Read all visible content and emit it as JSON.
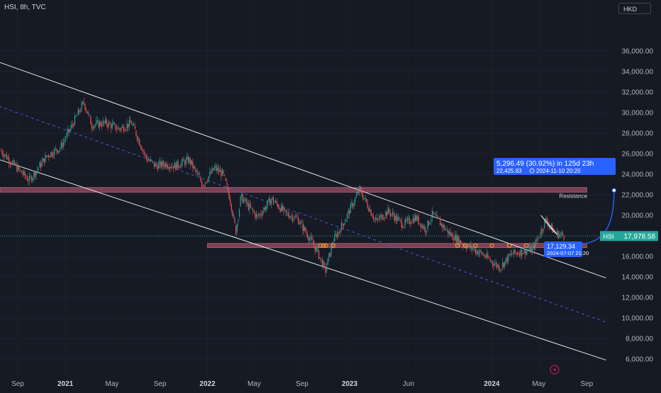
{
  "header": {
    "title": "HSI, 8h, TVC",
    "currency": "HKD"
  },
  "colors": {
    "background": "#161a25",
    "up": "#26a69a",
    "down": "#ef5350",
    "zone": "#9c4d63",
    "measure": "#2962ff",
    "marker": "#f59a23"
  },
  "chart_data": {
    "type": "candlestick",
    "title": "HSI, 8h, TVC",
    "ylim": [
      5000,
      37500
    ],
    "y_ticks": [
      6000,
      8000,
      10000,
      12000,
      14000,
      16000,
      18000,
      20000,
      22000,
      24000,
      26000,
      28000,
      30000,
      32000,
      34000,
      36000
    ],
    "y_tick_labels": [
      "6,000.00",
      "8,000.00",
      "10,000.00",
      "12,000.00",
      "14,000.00",
      "16,000.00",
      "18,000.00",
      "20,000.00",
      "22,000.00",
      "24,000.00",
      "26,000.00",
      "28,000.00",
      "30,000.00",
      "32,000.00",
      "34,000.00",
      "36,000.00"
    ],
    "x_ticks": [
      "2020-09-01",
      "2021-01-01",
      "2021-05-01",
      "2021-09-01",
      "2022-01-01",
      "2022-05-01",
      "2022-09-01",
      "2023-01-01",
      "2023-06-01",
      "2024-01-01",
      "2024-05-01",
      "2024-09-01"
    ],
    "x_tick_labels": [
      "Sep",
      "2021",
      "May",
      "Sep",
      "2022",
      "May",
      "Sep",
      "2023",
      "Jun",
      "2024",
      "May",
      "Sep"
    ],
    "x_tick_bold": [
      false,
      true,
      false,
      false,
      true,
      false,
      false,
      true,
      false,
      true,
      false,
      false
    ],
    "price_path": [
      [
        "2020-07-20",
        26300
      ],
      [
        "2020-08-20",
        25000
      ],
      [
        "2020-10-01",
        23400
      ],
      [
        "2020-11-15",
        25800
      ],
      [
        "2020-12-20",
        26600
      ],
      [
        "2021-01-15",
        28500
      ],
      [
        "2021-02-18",
        31000
      ],
      [
        "2021-03-10",
        28800
      ],
      [
        "2021-04-15",
        29000
      ],
      [
        "2021-05-20",
        28400
      ],
      [
        "2021-06-20",
        29000
      ],
      [
        "2021-07-28",
        25600
      ],
      [
        "2021-08-20",
        24800
      ],
      [
        "2021-09-15",
        25000
      ],
      [
        "2021-10-10",
        24800
      ],
      [
        "2021-11-15",
        25400
      ],
      [
        "2021-12-20",
        23000
      ],
      [
        "2022-01-20",
        24600
      ],
      [
        "2022-02-10",
        24000
      ],
      [
        "2022-03-01",
        21500
      ],
      [
        "2022-03-15",
        18400
      ],
      [
        "2022-03-28",
        21800
      ],
      [
        "2022-05-10",
        19800
      ],
      [
        "2022-06-15",
        21600
      ],
      [
        "2022-07-20",
        20200
      ],
      [
        "2022-08-20",
        19700
      ],
      [
        "2022-09-20",
        17800
      ],
      [
        "2022-10-10",
        16500
      ],
      [
        "2022-10-31",
        14600
      ],
      [
        "2022-11-20",
        17500
      ],
      [
        "2022-12-20",
        19500
      ],
      [
        "2023-01-27",
        22500
      ],
      [
        "2023-03-10",
        19400
      ],
      [
        "2023-04-10",
        20400
      ],
      [
        "2023-05-20",
        19100
      ],
      [
        "2023-06-20",
        19800
      ],
      [
        "2023-07-15",
        18600
      ],
      [
        "2023-08-02",
        20100
      ],
      [
        "2023-09-15",
        18200
      ],
      [
        "2023-10-20",
        17200
      ],
      [
        "2023-12-05",
        16300
      ],
      [
        "2024-01-22",
        14900
      ],
      [
        "2024-02-20",
        16200
      ],
      [
        "2024-03-20",
        16500
      ],
      [
        "2024-04-15",
        16600
      ],
      [
        "2024-05-20",
        19600
      ],
      [
        "2024-06-10",
        18300
      ],
      [
        "2024-07-07",
        17978
      ]
    ],
    "last_price": {
      "symbol": "HSI",
      "value": 17978.58,
      "label": "17,978.58"
    },
    "zones": [
      {
        "label": "Resistance",
        "x_start": "2020-07-01",
        "x_end": "2024-09-01",
        "y_low": 22250,
        "y_high": 22700
      },
      {
        "label": "",
        "x_start": "2022-01-01",
        "x_end": "2024-09-01",
        "y_low": 16850,
        "y_high": 17250
      }
    ],
    "channel_upper": {
      "start": [
        "2020-07-01",
        35100
      ],
      "end": [
        "2024-10-20",
        13900
      ]
    },
    "channel_lower": {
      "start": [
        "2020-07-01",
        25600
      ],
      "end": [
        "2024-10-20",
        5900
      ]
    },
    "channel_mid": {
      "start": [
        "2020-07-01",
        30800
      ],
      "end": [
        "2024-10-20",
        9600
      ]
    },
    "support_markers": [
      "2022-10-18",
      "2022-10-26",
      "2022-11-01",
      "2022-11-20",
      "2023-10-05",
      "2023-10-25",
      "2023-11-20",
      "2024-01-01",
      "2024-02-15",
      "2024-03-30"
    ],
    "wedge": {
      "points": [
        [
          "2024-05-06",
          20000
        ],
        [
          "2024-06-18",
          18100
        ],
        [
          "2024-06-02",
          18700
        ]
      ]
    },
    "projection": {
      "from": {
        "date": "2024-07-07",
        "value": 17129.34
      },
      "to": {
        "date": "2024-11-10",
        "value": 22425.83
      }
    },
    "annotations": {
      "measure_main": "5,296.49 (30.92%) in 125d 23h",
      "measure_target": "22,425.83",
      "measure_target_date": "2024-11-10  20:20",
      "start_value": "17,129.34",
      "start_date": "2024-07-07 21:20"
    }
  }
}
